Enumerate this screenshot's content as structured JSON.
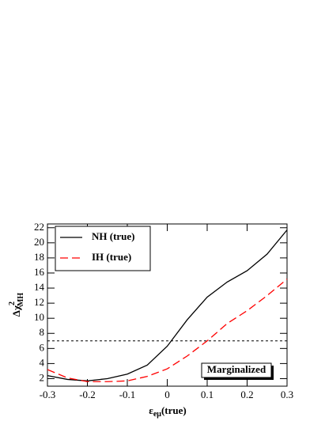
{
  "chart_data": {
    "type": "line",
    "x": [
      -0.3,
      -0.25,
      -0.2,
      -0.15,
      -0.1,
      -0.05,
      0,
      0.05,
      0.1,
      0.15,
      0.2,
      0.25,
      0.3
    ],
    "series": [
      {
        "name": "NH (true)",
        "color": "#000000",
        "dash": "solid",
        "values": [
          2.4,
          1.9,
          1.7,
          2.0,
          2.6,
          3.8,
          6.3,
          9.8,
          12.8,
          14.8,
          16.3,
          18.5,
          21.7
        ]
      },
      {
        "name": "IH (true)",
        "color": "#ff0000",
        "dash": "dashed",
        "values": [
          3.2,
          2.1,
          1.6,
          1.6,
          1.7,
          2.3,
          3.3,
          5.0,
          7.0,
          9.3,
          11.0,
          13.0,
          15.2
        ]
      }
    ],
    "reference_line": 7,
    "annotation": "Marginalized",
    "x_label": {
      "main": "ε",
      "sub": "eμ",
      "rest": "(true)"
    },
    "y_label": {
      "main": "Δχ",
      "sup": "2",
      "sub": "MH"
    },
    "xlim": [
      -0.3,
      0.3
    ],
    "xticks": [
      -0.3,
      -0.2,
      -0.1,
      0,
      0.1,
      0.2,
      0.3
    ],
    "ylim": [
      1,
      22.5
    ],
    "yticks": [
      2,
      4,
      6,
      8,
      10,
      12,
      14,
      16,
      18,
      20,
      22
    ],
    "legend": "upper left"
  }
}
